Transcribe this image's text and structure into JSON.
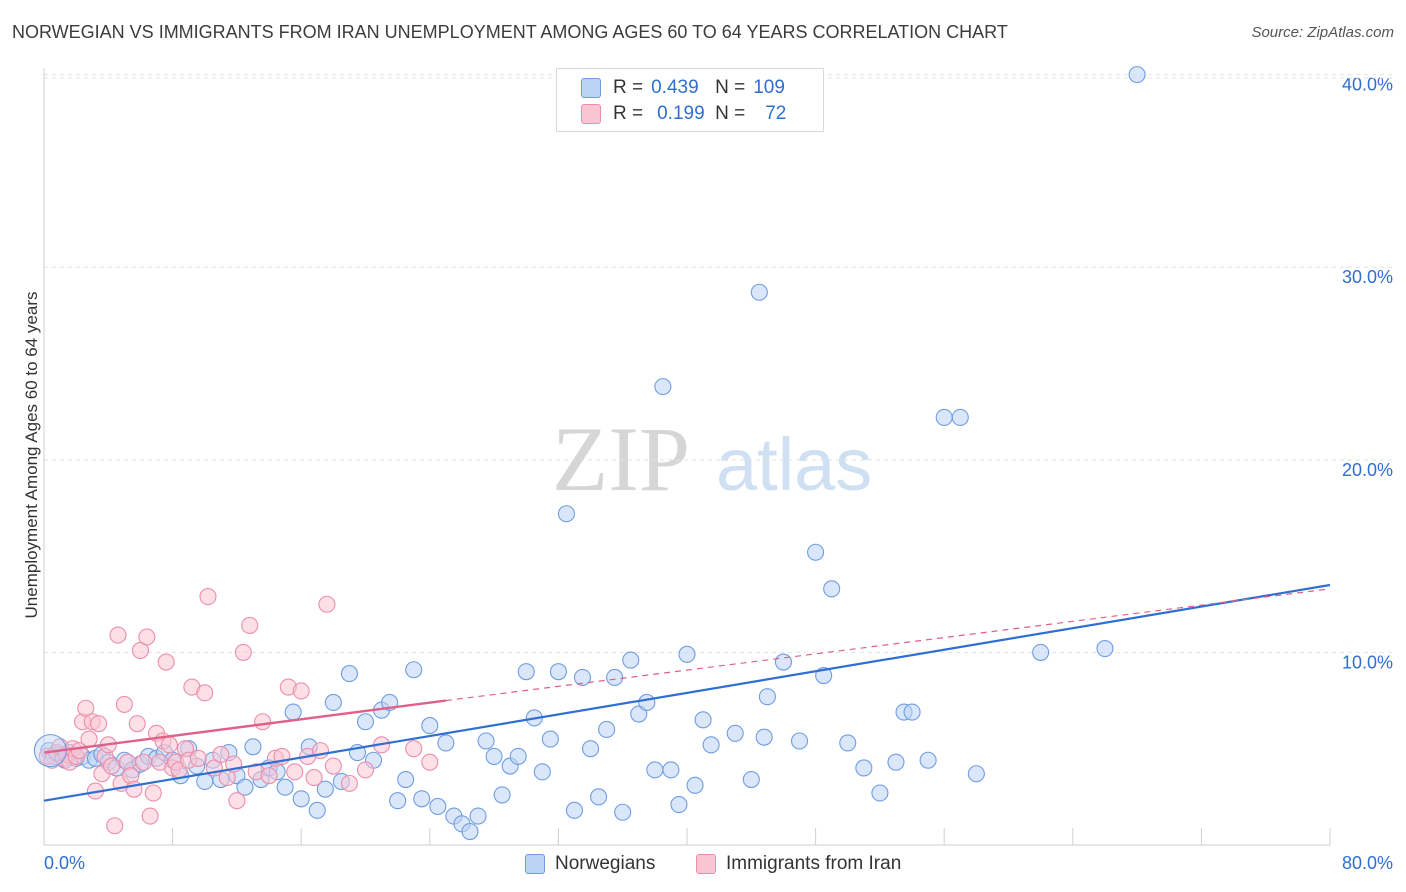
{
  "title": "NORWEGIAN VS IMMIGRANTS FROM IRAN UNEMPLOYMENT AMONG AGES 60 TO 64 YEARS CORRELATION CHART",
  "source": "Source: ZipAtlas.com",
  "watermark": {
    "zip": "ZIP",
    "atlas": "atlas"
  },
  "legend_top": {
    "rows": [
      {
        "r_label": "R =",
        "r_value": "0.439",
        "n_label": "N =",
        "n_value": "109",
        "fill": "#bcd3f5",
        "stroke": "#6f9de0"
      },
      {
        "r_label": "R =",
        "r_value": "0.199",
        "n_label": "N =",
        "n_value": "72",
        "fill": "#f9c4d3",
        "stroke": "#ec8eaa"
      }
    ]
  },
  "chart_data": {
    "type": "scatter",
    "title": "NORWEGIAN VS IMMIGRANTS FROM IRAN UNEMPLOYMENT AMONG AGES 60 TO 64 YEARS CORRELATION CHART",
    "xlabel": "",
    "ylabel": "Unemployment Among Ages 60 to 64 years",
    "xlim": [
      0,
      80
    ],
    "ylim": [
      0,
      40.5
    ],
    "x_ticks": [
      "0.0%",
      "80.0%"
    ],
    "y_ticks": [
      {
        "value": 10,
        "label": "10.0%"
      },
      {
        "value": 20,
        "label": "20.0%"
      },
      {
        "value": 30,
        "label": "30.0%"
      },
      {
        "value": 40,
        "label": "40.0%"
      }
    ],
    "grid": true,
    "legend": {
      "position": "bottom",
      "entries": [
        "Norwegians",
        "Immigrants from Iran"
      ]
    },
    "series": [
      {
        "name": "Norwegians",
        "color": "#6f9de0",
        "fill": "#bcd3f5",
        "trend": {
          "x": [
            0,
            80
          ],
          "y": [
            2.3,
            13.5
          ],
          "color": "#2f6fd1"
        },
        "points": [
          [
            0.3,
            4.9
          ],
          [
            0.6,
            4.6
          ],
          [
            1.0,
            4.7
          ],
          [
            1.3,
            4.4
          ],
          [
            1.6,
            4.8
          ],
          [
            2.0,
            4.5
          ],
          [
            2.4,
            4.6
          ],
          [
            2.8,
            4.4
          ],
          [
            3.2,
            4.5
          ],
          [
            3.6,
            4.7
          ],
          [
            4.0,
            4.3
          ],
          [
            4.5,
            4.0
          ],
          [
            5.0,
            4.4
          ],
          [
            5.5,
            3.9
          ],
          [
            6.0,
            4.2
          ],
          [
            6.5,
            4.6
          ],
          [
            7.0,
            4.5
          ],
          [
            7.5,
            4.8
          ],
          [
            8.0,
            4.4
          ],
          [
            8.5,
            3.6
          ],
          [
            9.0,
            5.0
          ],
          [
            9.5,
            4.1
          ],
          [
            10.0,
            3.3
          ],
          [
            10.5,
            4.4
          ],
          [
            11.0,
            3.4
          ],
          [
            11.5,
            4.8
          ],
          [
            12.0,
            3.6
          ],
          [
            12.5,
            3.0
          ],
          [
            13.0,
            5.1
          ],
          [
            13.5,
            3.4
          ],
          [
            14.0,
            4.0
          ],
          [
            14.5,
            3.8
          ],
          [
            15.0,
            3.0
          ],
          [
            15.5,
            6.9
          ],
          [
            16.0,
            2.4
          ],
          [
            16.5,
            5.1
          ],
          [
            17.0,
            1.8
          ],
          [
            17.5,
            2.9
          ],
          [
            18.0,
            7.4
          ],
          [
            18.5,
            3.3
          ],
          [
            19.0,
            8.9
          ],
          [
            19.5,
            4.8
          ],
          [
            20.0,
            6.4
          ],
          [
            20.5,
            4.4
          ],
          [
            21.0,
            7.0
          ],
          [
            21.5,
            7.4
          ],
          [
            22.0,
            2.3
          ],
          [
            22.5,
            3.4
          ],
          [
            23.0,
            9.1
          ],
          [
            23.5,
            2.4
          ],
          [
            24.0,
            6.2
          ],
          [
            24.5,
            2.0
          ],
          [
            25.0,
            5.3
          ],
          [
            25.5,
            1.5
          ],
          [
            26.0,
            1.1
          ],
          [
            26.5,
            0.7
          ],
          [
            27.0,
            1.5
          ],
          [
            27.5,
            5.4
          ],
          [
            28.0,
            4.6
          ],
          [
            28.5,
            2.6
          ],
          [
            29.0,
            4.1
          ],
          [
            29.5,
            4.6
          ],
          [
            30.0,
            9.0
          ],
          [
            30.5,
            6.6
          ],
          [
            31.0,
            3.8
          ],
          [
            31.5,
            5.5
          ],
          [
            32.0,
            9.0
          ],
          [
            32.5,
            17.2
          ],
          [
            33.0,
            1.8
          ],
          [
            33.5,
            8.7
          ],
          [
            34.0,
            5.0
          ],
          [
            34.5,
            2.5
          ],
          [
            35.0,
            6.0
          ],
          [
            35.5,
            8.7
          ],
          [
            36.0,
            1.7
          ],
          [
            36.5,
            9.6
          ],
          [
            37.0,
            6.8
          ],
          [
            37.5,
            7.4
          ],
          [
            38.0,
            3.9
          ],
          [
            38.5,
            23.8
          ],
          [
            39.0,
            3.9
          ],
          [
            39.5,
            2.1
          ],
          [
            40.0,
            9.9
          ],
          [
            40.5,
            3.1
          ],
          [
            41.0,
            6.5
          ],
          [
            41.5,
            5.2
          ],
          [
            43.0,
            5.8
          ],
          [
            44.0,
            3.4
          ],
          [
            44.5,
            28.7
          ],
          [
            44.8,
            5.6
          ],
          [
            45.0,
            7.7
          ],
          [
            46.0,
            9.5
          ],
          [
            47.0,
            5.4
          ],
          [
            48.0,
            15.2
          ],
          [
            48.5,
            8.8
          ],
          [
            49.0,
            13.3
          ],
          [
            50.0,
            5.3
          ],
          [
            51.0,
            4.0
          ],
          [
            52.0,
            2.7
          ],
          [
            53.0,
            4.3
          ],
          [
            53.5,
            6.9
          ],
          [
            54.0,
            6.9
          ],
          [
            55.0,
            4.4
          ],
          [
            56.0,
            22.2
          ],
          [
            57.0,
            22.2
          ],
          [
            58.0,
            3.7
          ],
          [
            62.0,
            10.0
          ],
          [
            66.0,
            10.2
          ],
          [
            68.0,
            40.0
          ]
        ]
      },
      {
        "name": "Immigrants from Iran",
        "color": "#ec8eaa",
        "fill": "#f9c4d3",
        "trend": {
          "x": [
            0,
            25
          ],
          "y": [
            4.8,
            7.5
          ],
          "color": "#e0608a",
          "dashed_extension_to": [
            80,
            13.3
          ]
        },
        "points": [
          [
            0.2,
            4.6
          ],
          [
            0.5,
            4.4
          ],
          [
            0.8,
            4.8
          ],
          [
            1.0,
            5.1
          ],
          [
            1.2,
            4.5
          ],
          [
            1.4,
            4.7
          ],
          [
            1.6,
            4.3
          ],
          [
            1.8,
            5.0
          ],
          [
            2.0,
            4.6
          ],
          [
            2.2,
            4.9
          ],
          [
            2.4,
            6.4
          ],
          [
            2.6,
            7.1
          ],
          [
            2.8,
            5.5
          ],
          [
            3.0,
            6.4
          ],
          [
            3.2,
            2.8
          ],
          [
            3.4,
            6.3
          ],
          [
            3.6,
            3.7
          ],
          [
            3.8,
            4.6
          ],
          [
            4.0,
            5.2
          ],
          [
            4.2,
            4.1
          ],
          [
            4.4,
            1.0
          ],
          [
            4.6,
            10.9
          ],
          [
            4.8,
            3.2
          ],
          [
            5.0,
            7.3
          ],
          [
            5.2,
            4.3
          ],
          [
            5.4,
            3.6
          ],
          [
            5.6,
            2.9
          ],
          [
            5.8,
            6.3
          ],
          [
            6.0,
            10.1
          ],
          [
            6.2,
            4.3
          ],
          [
            6.4,
            10.8
          ],
          [
            6.6,
            1.5
          ],
          [
            6.8,
            2.7
          ],
          [
            7.0,
            5.8
          ],
          [
            7.2,
            4.3
          ],
          [
            7.4,
            5.4
          ],
          [
            7.6,
            9.5
          ],
          [
            7.8,
            5.2
          ],
          [
            8.0,
            4.0
          ],
          [
            8.2,
            4.3
          ],
          [
            8.4,
            3.9
          ],
          [
            8.8,
            5.0
          ],
          [
            9.0,
            4.4
          ],
          [
            9.2,
            8.2
          ],
          [
            9.6,
            4.5
          ],
          [
            10.0,
            7.9
          ],
          [
            10.2,
            12.9
          ],
          [
            10.6,
            4.0
          ],
          [
            11.0,
            4.7
          ],
          [
            11.4,
            3.5
          ],
          [
            11.8,
            4.2
          ],
          [
            12.0,
            2.3
          ],
          [
            12.4,
            10.0
          ],
          [
            12.8,
            11.4
          ],
          [
            13.2,
            3.8
          ],
          [
            13.6,
            6.4
          ],
          [
            14.0,
            3.6
          ],
          [
            14.4,
            4.5
          ],
          [
            14.8,
            4.6
          ],
          [
            15.2,
            8.2
          ],
          [
            15.6,
            3.8
          ],
          [
            16.0,
            8.0
          ],
          [
            16.4,
            4.6
          ],
          [
            16.8,
            3.5
          ],
          [
            17.2,
            4.9
          ],
          [
            17.6,
            12.5
          ],
          [
            18.0,
            4.1
          ],
          [
            19.0,
            3.2
          ],
          [
            20.0,
            3.9
          ],
          [
            21.0,
            5.2
          ],
          [
            23.0,
            5.0
          ],
          [
            24.0,
            4.3
          ]
        ]
      }
    ]
  },
  "bottom_legend": {
    "items": [
      "Norwegians",
      "Immigrants from Iran"
    ]
  },
  "x_axis_labels": {
    "min": "0.0%",
    "max": "80.0%"
  }
}
